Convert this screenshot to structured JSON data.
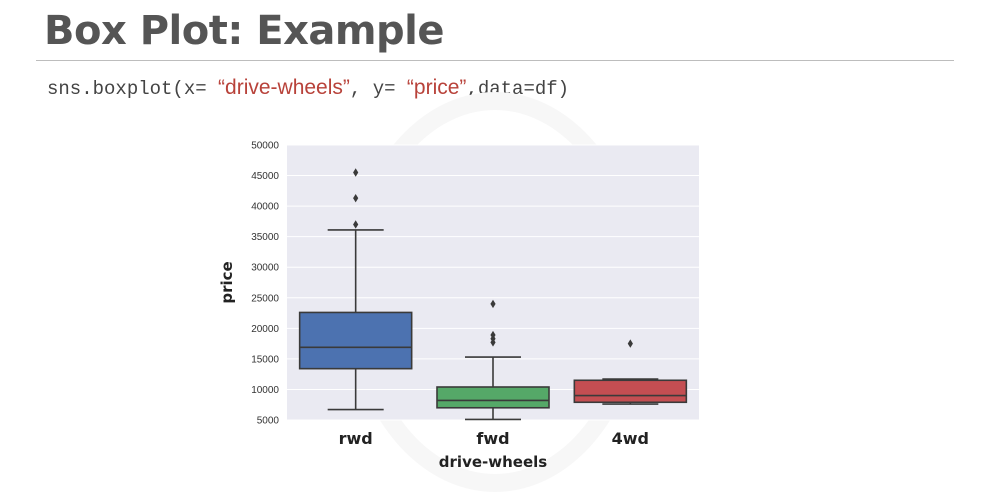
{
  "slide": {
    "title": "Box Plot: Example",
    "code": {
      "part1": "sns.boxplot(x= ",
      "arg_x": "“drive-wheels”",
      "part2": ", y= ",
      "arg_y": "“price”",
      "part3": ",data=df)"
    }
  },
  "colors": {
    "string_literal": "#b8423a",
    "plot_background": "#eaeaf2",
    "gridline": "#ffffff",
    "box_edge": "#3a3a3a"
  },
  "chart_data": {
    "type": "box",
    "xlabel": "drive-wheels",
    "ylabel": "price",
    "ylim": [
      5000,
      50000
    ],
    "yticks": [
      5000,
      10000,
      15000,
      20000,
      25000,
      30000,
      35000,
      40000,
      45000,
      50000
    ],
    "grid": true,
    "categories": [
      "rwd",
      "fwd",
      "4wd"
    ],
    "boxes": [
      {
        "category": "rwd",
        "color": "#4c72b0",
        "whisker_low": 6700,
        "q1": 13400,
        "median": 16900,
        "q3": 22600,
        "whisker_high": 36100,
        "outliers": [
          37000,
          41300,
          45500
        ]
      },
      {
        "category": "fwd",
        "color": "#55a868",
        "whisker_low": 5100,
        "q1": 7000,
        "median": 8200,
        "q3": 10400,
        "whisker_high": 15300,
        "outliers": [
          17700,
          18300,
          18900,
          24000
        ]
      },
      {
        "category": "4wd",
        "color": "#c44e52",
        "whisker_low": 7600,
        "q1": 7900,
        "median": 9000,
        "q3": 11500,
        "whisker_high": 11700,
        "outliers": [
          17500
        ]
      }
    ]
  }
}
